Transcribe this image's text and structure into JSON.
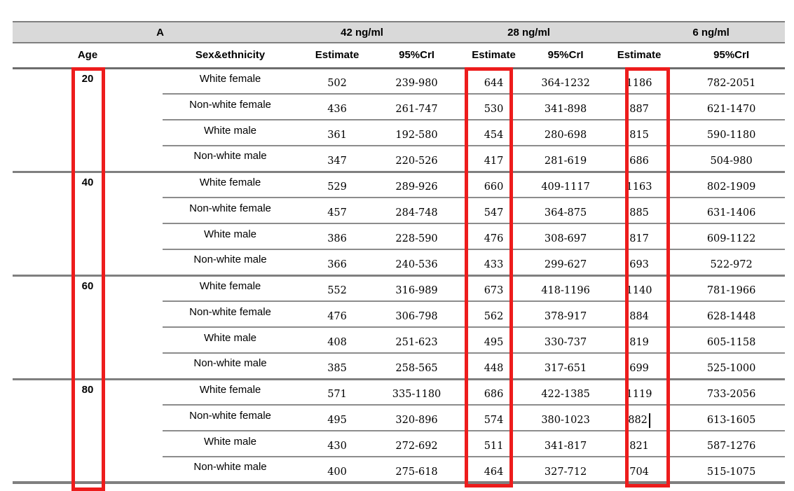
{
  "panel_label": "A",
  "colors": {
    "highlight_red": "#ed1c1c",
    "header_fill": "#d9d9d9",
    "border_gray": "#7f7f7f"
  },
  "table": {
    "concentration_headers": [
      "42 ng/ml",
      "28 ng/ml",
      "6 ng/ml"
    ],
    "columns": {
      "age": "Age",
      "sex": "Sex&ethnicity",
      "estimate": "Estimate",
      "cri": "95%CrI"
    },
    "groups": [
      {
        "age": "20",
        "rows": [
          {
            "sex": "White female",
            "values": [
              "502",
              "239-980",
              "644",
              "364-1232",
              "1186",
              "782-2051"
            ]
          },
          {
            "sex": "Non-white female",
            "values": [
              "436",
              "261-747",
              "530",
              "341-898",
              "887",
              "621-1470"
            ]
          },
          {
            "sex": "White male",
            "values": [
              "361",
              "192-580",
              "454",
              "280-698",
              "815",
              "590-1180"
            ]
          },
          {
            "sex": "Non-white male",
            "values": [
              "347",
              "220-526",
              "417",
              "281-619",
              "686",
              "504-980"
            ]
          }
        ]
      },
      {
        "age": "40",
        "rows": [
          {
            "sex": "White female",
            "values": [
              "529",
              "289-926",
              "660",
              "409-1117",
              "1163",
              "802-1909"
            ]
          },
          {
            "sex": "Non-white female",
            "values": [
              "457",
              "284-748",
              "547",
              "364-875",
              "885",
              "631-1406"
            ]
          },
          {
            "sex": "White male",
            "values": [
              "386",
              "228-590",
              "476",
              "308-697",
              "817",
              "609-1122"
            ]
          },
          {
            "sex": "Non-white male",
            "values": [
              "366",
              "240-536",
              "433",
              "299-627",
              "693",
              "522-972"
            ]
          }
        ]
      },
      {
        "age": "60",
        "rows": [
          {
            "sex": "White female",
            "values": [
              "552",
              "316-989",
              "673",
              "418-1196",
              "1140",
              "781-1966"
            ]
          },
          {
            "sex": "Non-white female",
            "values": [
              "476",
              "306-798",
              "562",
              "378-917",
              "884",
              "628-1448"
            ]
          },
          {
            "sex": "White male",
            "values": [
              "408",
              "251-623",
              "495",
              "330-737",
              "819",
              "605-1158"
            ]
          },
          {
            "sex": "Non-white male",
            "values": [
              "385",
              "258-565",
              "448",
              "317-651",
              "699",
              "525-1000"
            ]
          }
        ]
      },
      {
        "age": "80",
        "rows": [
          {
            "sex": "White female",
            "values": [
              "571",
              "335-1180",
              "686",
              "422-1385",
              "1119",
              "733-2056"
            ]
          },
          {
            "sex": "Non-white female",
            "values": [
              "495",
              "320-896",
              "574",
              "380-1023",
              "882",
              "613-1605"
            ]
          },
          {
            "sex": "White male",
            "values": [
              "430",
              "272-692",
              "511",
              "341-817",
              "821",
              "587-1276"
            ]
          },
          {
            "sex": "Non-white male",
            "values": [
              "400",
              "275-618",
              "464",
              "327-712",
              "704",
              "515-1075"
            ]
          }
        ]
      }
    ],
    "cursor": {
      "group_index": 3,
      "row_index": 1,
      "value_index": 4
    }
  }
}
